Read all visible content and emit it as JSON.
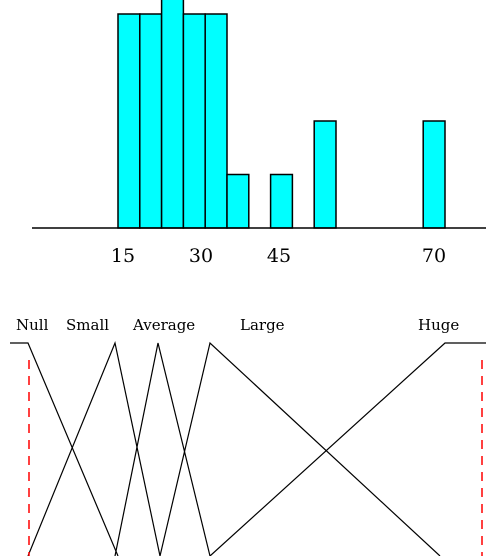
{
  "histogram": {
    "bars": [
      {
        "height": 4
      },
      {
        "height": 4
      },
      {
        "height": 5
      },
      {
        "height": 4
      },
      {
        "height": 4
      },
      {
        "height": 1
      },
      {
        "height": 0
      },
      {
        "height": 1
      },
      {
        "height": 0
      },
      {
        "height": 2
      },
      {
        "height": 0
      },
      {
        "height": 0
      },
      {
        "height": 0
      },
      {
        "height": 0
      },
      {
        "height": 2
      }
    ],
    "x_tick_labels": [
      "15",
      "30",
      "45",
      "70"
    ],
    "bar_color": "#00ffff",
    "axis_color": "#000000"
  },
  "fuzzy_sets": {
    "terms": [
      "Null",
      "Small",
      "Average",
      "Large",
      "Huge"
    ],
    "line_color": "#000000",
    "boundary_color": "#ff0000"
  }
}
